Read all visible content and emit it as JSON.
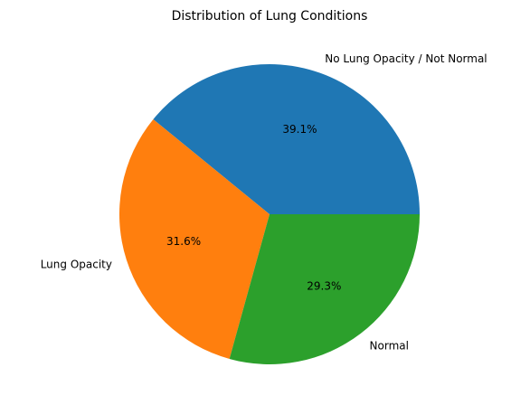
{
  "chart_data": {
    "type": "pie",
    "title": "Distribution of Lung Conditions",
    "start_angle_deg": 0,
    "direction": "counterclockwise",
    "categories": [
      "No Lung Opacity / Not Normal",
      "Lung Opacity",
      "Normal"
    ],
    "values": [
      39.1,
      31.6,
      29.3
    ],
    "percent_labels": [
      "39.1%",
      "31.6%",
      "29.3%"
    ],
    "colors": [
      "#1f77b4",
      "#ff7f0e",
      "#2ca02c"
    ],
    "legend": false
  }
}
